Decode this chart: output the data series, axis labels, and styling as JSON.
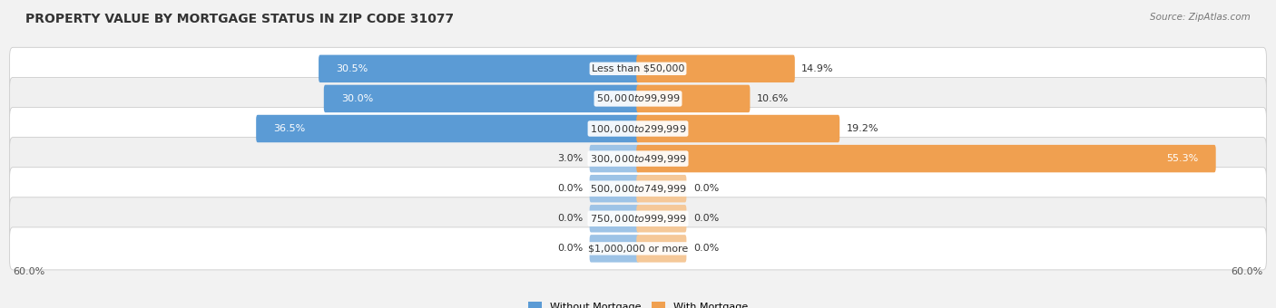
{
  "title": "PROPERTY VALUE BY MORTGAGE STATUS IN ZIP CODE 31077",
  "source": "Source: ZipAtlas.com",
  "categories": [
    "Less than $50,000",
    "$50,000 to $99,999",
    "$100,000 to $299,999",
    "$300,000 to $499,999",
    "$500,000 to $749,999",
    "$750,000 to $999,999",
    "$1,000,000 or more"
  ],
  "without_mortgage": [
    30.5,
    30.0,
    36.5,
    3.0,
    0.0,
    0.0,
    0.0
  ],
  "with_mortgage": [
    14.9,
    10.6,
    19.2,
    55.3,
    0.0,
    0.0,
    0.0
  ],
  "color_without_strong": "#5b9bd5",
  "color_without_light": "#9dc3e6",
  "color_with_strong": "#f0a050",
  "color_with_light": "#f5c898",
  "axis_limit": 60.0,
  "stub_size": 4.5,
  "background_color": "#f2f2f2",
  "row_bg_even": "#f9f9f9",
  "row_bg_odd": "#efefef",
  "title_fontsize": 10,
  "cat_fontsize": 8,
  "val_fontsize": 8,
  "tick_fontsize": 8,
  "source_fontsize": 7.5,
  "legend_fontsize": 8
}
